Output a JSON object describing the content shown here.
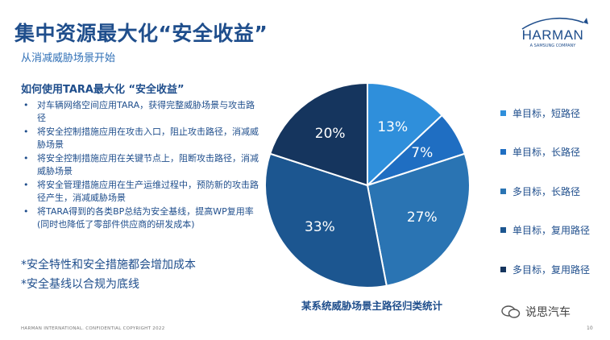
{
  "header": {
    "title": "集中资源最大化“安全收益”",
    "subtitle": "从消减威胁场景开始"
  },
  "logo": {
    "name": "HARMAN",
    "tagline": "A SAMSUNG COMPANY"
  },
  "content": {
    "heading": "如何使用TARA最大化 “安全收益”",
    "bullets": [
      "对车辆网络空间应用TARA，获得完整威胁场景与攻击路径",
      "将安全控制措施应用在攻击入口，阻止攻击路径，消减威胁场景",
      "将安全控制措施应用在关键节点上，阻断攻击路径，消减威胁场景",
      "将安全管理措施应用在生产运维过程中，预防新的攻击路径产生，消减威胁场景",
      "将TARA得到的各类BP总结为安全基线，提高WP复用率(同时也降低了零部件供应商的研发成本)"
    ],
    "notes": [
      "*安全特性和安全措施都会增加成本",
      "*安全基线以合规为底线"
    ]
  },
  "chart_data": {
    "type": "pie",
    "categories": [
      "单目标，短路径",
      "单目标，长路径",
      "多目标，长路径",
      "单目标，复用路径",
      "多目标，复用路径"
    ],
    "values": [
      13,
      7,
      27,
      33,
      20
    ],
    "labels": [
      "13%",
      "7%",
      "27%",
      "33%",
      "20%"
    ],
    "colors": [
      "#2f8fdb",
      "#1f6ec2",
      "#2a74b3",
      "#1c5690",
      "#15355e"
    ],
    "title": "某系统威胁场景主路径归类统计",
    "legend_position": "right"
  },
  "footer": {
    "copyright": "HARMAN INTERNATIONAL. CONFIDENTIAL COPYRIGHT 2022",
    "page": "10",
    "watermark": "说思汽车"
  }
}
